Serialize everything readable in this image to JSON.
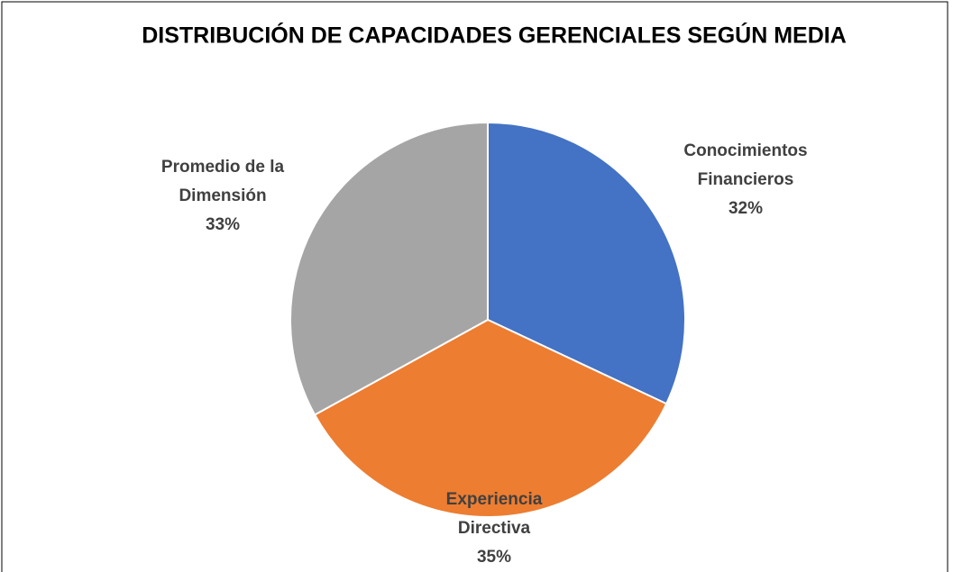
{
  "chart_data": {
    "type": "pie",
    "title": "DISTRIBUCIÓN DE CAPACIDADES GERENCIALES SEGÚN MEDIA",
    "categories": [
      "Conocimientos Financieros",
      "Experiencia Directiva",
      "Promedio de la Dimensión"
    ],
    "values": [
      32,
      35,
      33
    ],
    "value_labels": [
      "32%",
      "35%",
      "33%"
    ],
    "colors": [
      "#4472c4",
      "#ed7d31",
      "#a5a5a5"
    ]
  }
}
